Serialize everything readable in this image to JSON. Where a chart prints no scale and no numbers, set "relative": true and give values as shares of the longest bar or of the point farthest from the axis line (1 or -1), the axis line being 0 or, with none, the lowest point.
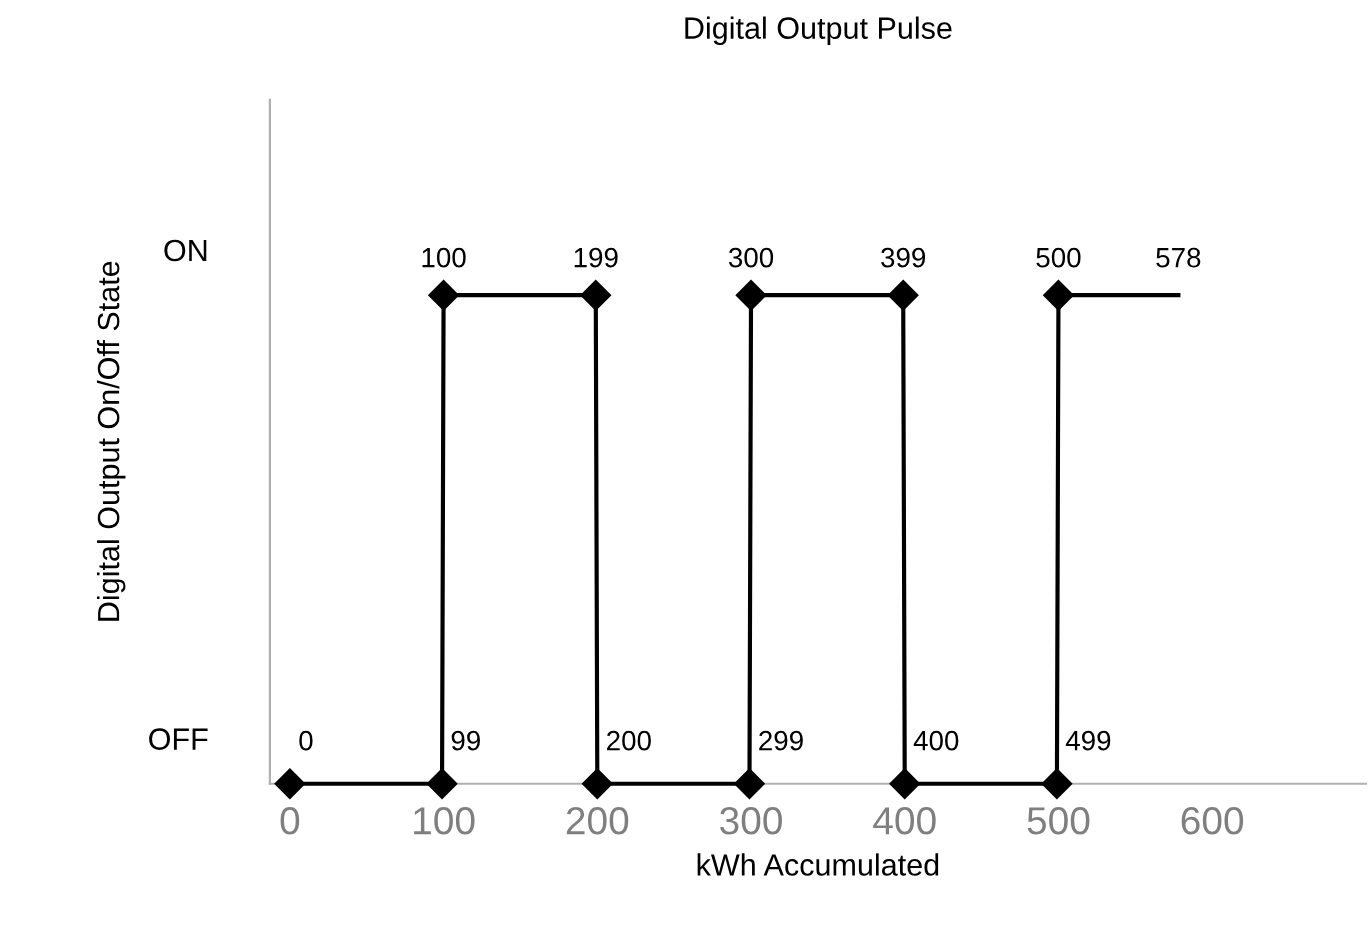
{
  "chart_data": {
    "type": "line",
    "title": "Digital Output Pulse",
    "xlabel": "kWh Accumulated",
    "ylabel": "Digital Output On/Off State",
    "xlim": [
      -13,
      700
    ],
    "xticks": [
      0,
      100,
      200,
      300,
      400,
      500,
      600
    ],
    "relative": true,
    "grid": false,
    "line_style": "solid",
    "series": [
      {
        "color": "#000000",
        "marker": "diamond",
        "x": [
          0,
          99,
          100,
          199,
          200,
          299,
          300,
          399,
          400,
          499,
          500
        ],
        "values": [
          0,
          0,
          1,
          1,
          0,
          0,
          1,
          1,
          0,
          0,
          1
        ]
      },
      {
        "color": "#000000",
        "marker": "none",
        "x": [
          500,
          578
        ],
        "values": [
          1,
          1
        ]
      }
    ],
    "annotations": [
      "ON",
      "OFF",
      {
        "text": "0",
        "x": 0,
        "y": 0
      },
      {
        "text": "99",
        "x": 99,
        "y": 0
      },
      {
        "text": "100",
        "x": 100,
        "y": 1
      },
      {
        "text": "199",
        "x": 199,
        "y": 1
      },
      {
        "text": "200",
        "x": 200,
        "y": 0
      },
      {
        "text": "299",
        "x": 299,
        "y": 0
      },
      {
        "text": "300",
        "x": 300,
        "y": 1
      },
      {
        "text": "399",
        "x": 399,
        "y": 1
      },
      {
        "text": "400",
        "x": 400,
        "y": 0
      },
      {
        "text": "499",
        "x": 499,
        "y": 0
      },
      {
        "text": "500",
        "x": 500,
        "y": 1
      },
      {
        "text": "578",
        "x": 578,
        "y": 1
      }
    ]
  }
}
